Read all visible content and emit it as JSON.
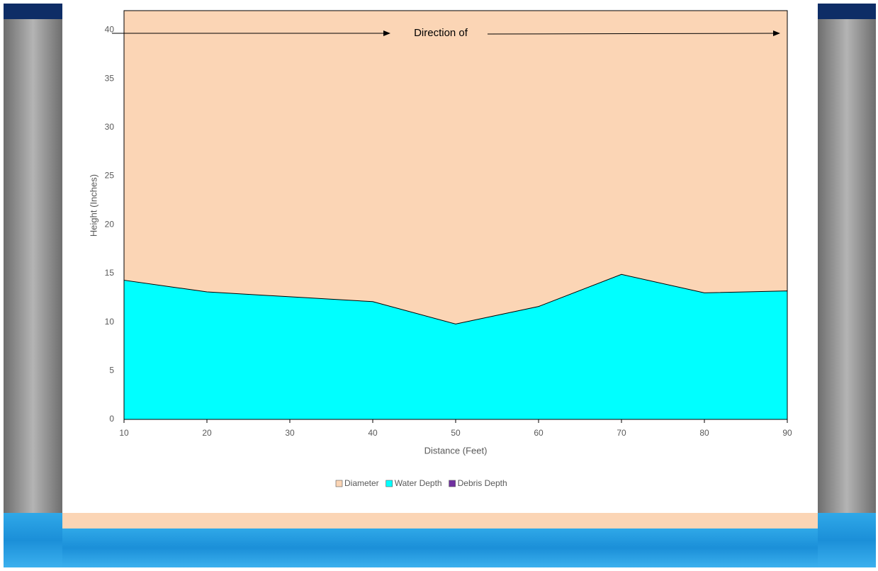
{
  "chart_data": {
    "type": "area",
    "x": [
      10,
      20,
      30,
      40,
      50,
      60,
      70,
      80,
      90
    ],
    "xlim": [
      10,
      90
    ],
    "xticks": [
      10,
      20,
      30,
      40,
      50,
      60,
      70,
      80,
      90
    ],
    "ylim": [
      0,
      42
    ],
    "yticks": [
      0,
      5,
      10,
      15,
      20,
      25,
      30,
      35,
      40
    ],
    "x_label": "Distance (Feet)",
    "y_label": "Height (Inches)",
    "annotation": "Direction of",
    "series": [
      {
        "name": "Diameter",
        "color": "#fbd5b5",
        "values": [
          42,
          42,
          42,
          42,
          42,
          42,
          42,
          42,
          42
        ]
      },
      {
        "name": "Water Depth",
        "color": "#00ffff",
        "values": [
          14.3,
          13.1,
          12.6,
          12.1,
          9.8,
          11.6,
          14.9,
          13.0,
          13.2
        ]
      },
      {
        "name": "Debris Depth",
        "color": "#7030a0",
        "values": [
          0,
          0,
          0,
          0,
          0,
          0,
          0,
          0,
          0
        ]
      }
    ]
  }
}
